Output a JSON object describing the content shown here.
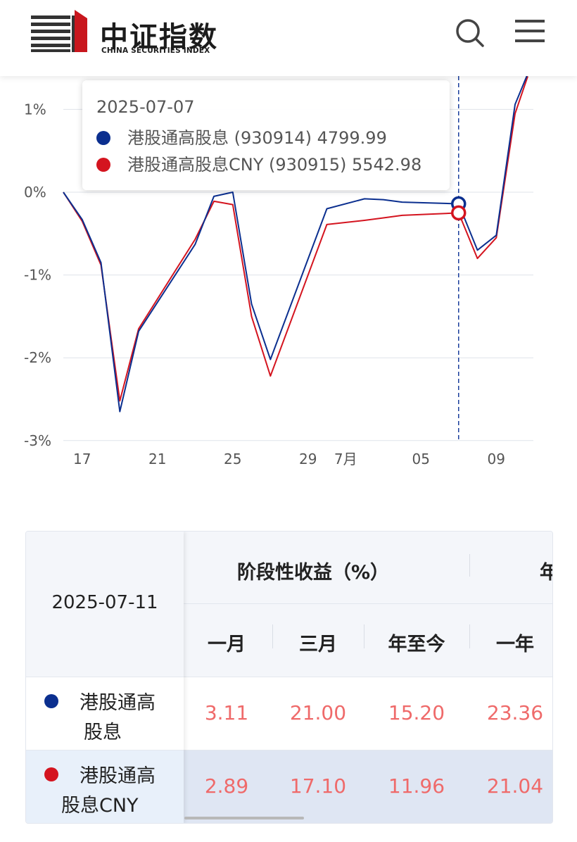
{
  "header": {
    "brand_cn": "中证指数",
    "brand_en": "CHINA SECURITIES INDEX",
    "icons": {
      "search": "search-icon",
      "menu": "menu-icon"
    }
  },
  "tooltip": {
    "date": "2025-07-07",
    "rows": [
      {
        "label": "港股通高股息 (930914) 4799.99",
        "color": "#0b2f8f"
      },
      {
        "label": "港股通高股息CNY (930915) 5542.98",
        "color": "#d4141f"
      }
    ]
  },
  "chart_data": {
    "type": "line",
    "y_ticks": [
      "1%",
      "0%",
      "-1%",
      "-2%",
      "-3%"
    ],
    "ylim": [
      -3,
      1.4
    ],
    "x_ticks": [
      "17",
      "21",
      "25",
      "29",
      "7月",
      "05",
      "09"
    ],
    "series": [
      {
        "name": "港股通高股息",
        "color": "#0b2f8f",
        "x": [
          "2025-06-16",
          "2025-06-17",
          "2025-06-18",
          "2025-06-19",
          "2025-06-20",
          "2025-06-23",
          "2025-06-24",
          "2025-06-25",
          "2025-06-26",
          "2025-06-27",
          "2025-06-30",
          "2025-07-02",
          "2025-07-03",
          "2025-07-04",
          "2025-07-07",
          "2025-07-08",
          "2025-07-09",
          "2025-07-10",
          "2025-07-11"
        ],
        "values": [
          0,
          -0.33,
          -0.85,
          -2.65,
          -1.68,
          -0.63,
          -0.05,
          0.0,
          -1.35,
          -2.02,
          -0.2,
          -0.08,
          -0.09,
          -0.12,
          -0.14,
          -0.7,
          -0.52,
          1.06,
          1.43
        ]
      },
      {
        "name": "港股通高股息CNY",
        "color": "#d4141f",
        "x": [
          "2025-06-16",
          "2025-06-17",
          "2025-06-18",
          "2025-06-19",
          "2025-06-20",
          "2025-06-23",
          "2025-06-24",
          "2025-06-25",
          "2025-06-26",
          "2025-06-27",
          "2025-06-30",
          "2025-07-02",
          "2025-07-03",
          "2025-07-04",
          "2025-07-07",
          "2025-07-08",
          "2025-07-09",
          "2025-07-10",
          "2025-07-11"
        ],
        "values": [
          0,
          -0.35,
          -0.88,
          -2.52,
          -1.65,
          -0.57,
          -0.11,
          -0.15,
          -1.5,
          -2.22,
          -0.39,
          -0.34,
          -0.31,
          -0.28,
          -0.25,
          -0.8,
          -0.55,
          0.95,
          1.4
        ]
      }
    ],
    "highlight_date": "2025-07-07",
    "grid": true
  },
  "table": {
    "date": "2025-07-11",
    "group_header": "阶段性收益（%）",
    "group_header_next": "年",
    "columns": [
      "一月",
      "三月",
      "年至今",
      "一年"
    ],
    "rows": [
      {
        "name_line1": "港股通高",
        "name_line2": "股息",
        "color": "#0b2f8f",
        "values": [
          "3.11",
          "21.00",
          "15.20",
          "23.36"
        ]
      },
      {
        "name_line1": "港股通高",
        "name_line2": "股息CNY",
        "color": "#d4141f",
        "values": [
          "2.89",
          "17.10",
          "11.96",
          "21.04"
        ]
      }
    ]
  }
}
